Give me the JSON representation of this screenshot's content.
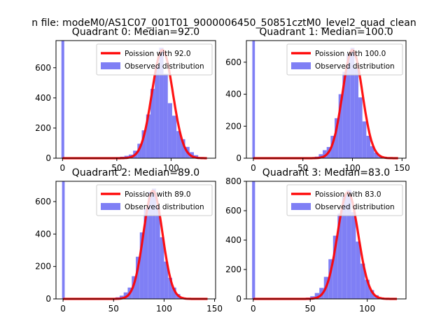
{
  "suptitle": "n file: modeM0/AS1C07_001T01_9000006450_50851cztM0_level2_quad_clean",
  "colors": {
    "poisson": "#ff0000",
    "hist": "#7f7ff5",
    "axis": "#000000"
  },
  "chart_data": [
    {
      "type": "bar",
      "title": "Quadrant 0: Median=92.0",
      "median": 92.0,
      "xlim": [
        -6,
        141
      ],
      "ylim": [
        0,
        780
      ],
      "xticks": [
        "0",
        "50",
        "100"
      ],
      "xtick_values": [
        0,
        50,
        100
      ],
      "yticks": [
        "0",
        "200",
        "400",
        "600"
      ],
      "ytick_values": [
        0,
        200,
        400,
        600
      ],
      "legend": [
        "Poission with 92.0",
        "Observed distribution"
      ],
      "legend_position": "top-right",
      "spike": {
        "x": 0,
        "value": 780
      },
      "hist_x": [
        47,
        51,
        55,
        59,
        63,
        67,
        71,
        75,
        79,
        83,
        87,
        91,
        95,
        99,
        103,
        107,
        111,
        115,
        119,
        123,
        127,
        131
      ],
      "hist_values": [
        3,
        6,
        10,
        16,
        24,
        50,
        96,
        185,
        290,
        460,
        612,
        733,
        560,
        365,
        282,
        180,
        126,
        75,
        40,
        20,
        7,
        2
      ]
    },
    {
      "type": "bar",
      "title": "Quadrant 1: Median=100.0",
      "median": 100.0,
      "xlim": [
        -7,
        154
      ],
      "ylim": [
        0,
        735
      ],
      "xticks": [
        "0",
        "50",
        "100",
        "150"
      ],
      "xtick_values": [
        0,
        50,
        100,
        150
      ],
      "yticks": [
        "0",
        "200",
        "400",
        "600"
      ],
      "ytick_values": [
        0,
        200,
        400,
        600
      ],
      "legend": [
        "Poission with 100.0",
        "Observed distribution"
      ],
      "legend_position": "top-right",
      "spike": {
        "x": 0,
        "value": 735
      },
      "hist_x": [
        60,
        64,
        68,
        72,
        76,
        80,
        84,
        88,
        92,
        96,
        100,
        104,
        108,
        112,
        116,
        120,
        124,
        128,
        132
      ],
      "hist_values": [
        3,
        10,
        25,
        50,
        70,
        140,
        250,
        400,
        540,
        650,
        690,
        560,
        380,
        230,
        140,
        75,
        35,
        12,
        4
      ]
    },
    {
      "type": "bar",
      "title": "Quadrant 2: Median=89.0",
      "median": 89.0,
      "xlim": [
        -7,
        151
      ],
      "ylim": [
        0,
        725
      ],
      "xticks": [
        "0",
        "50",
        "100",
        "150"
      ],
      "xtick_values": [
        0,
        50,
        100,
        150
      ],
      "yticks": [
        "0",
        "200",
        "400",
        "600"
      ],
      "ytick_values": [
        0,
        200,
        400,
        600
      ],
      "legend": [
        "Poission with 89.0",
        "Observed distribution"
      ],
      "legend_position": "top-right",
      "spike": {
        "x": 0,
        "value": 725
      },
      "hist_x": [
        50,
        54,
        58,
        62,
        66,
        70,
        74,
        78,
        82,
        86,
        90,
        94,
        98,
        102,
        106,
        110,
        114,
        118,
        122
      ],
      "hist_values": [
        3,
        10,
        20,
        40,
        70,
        140,
        260,
        410,
        560,
        660,
        680,
        570,
        380,
        230,
        130,
        70,
        30,
        10,
        3
      ]
    },
    {
      "type": "bar",
      "title": "Quadrant 3: Median=83.0",
      "median": 83.0,
      "xlim": [
        -6,
        134
      ],
      "ylim": [
        0,
        800
      ],
      "xticks": [
        "0",
        "50",
        "100"
      ],
      "xtick_values": [
        0,
        50,
        100
      ],
      "yticks": [
        "0",
        "200",
        "400",
        "600",
        "800"
      ],
      "ytick_values": [
        0,
        200,
        400,
        600,
        800
      ],
      "legend": [
        "Poission with 83.0",
        "Observed distribution"
      ],
      "legend_position": "top-right",
      "spike": {
        "x": 0,
        "value": 800
      },
      "hist_x": [
        44,
        48,
        52,
        56,
        60,
        64,
        68,
        72,
        76,
        80,
        84,
        88,
        92,
        96,
        100,
        104,
        108,
        112,
        116
      ],
      "hist_values": [
        3,
        8,
        18,
        40,
        75,
        150,
        270,
        430,
        580,
        700,
        740,
        590,
        390,
        240,
        130,
        60,
        25,
        8,
        3
      ]
    }
  ]
}
